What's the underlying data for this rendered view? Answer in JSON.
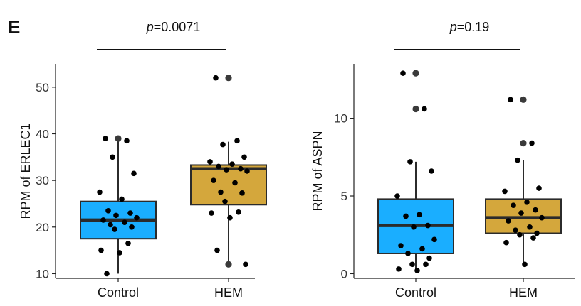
{
  "panel_label": "E",
  "chart_data": [
    {
      "type": "box",
      "title": "",
      "xlabel": "",
      "ylabel": "RPM of ERLEC1",
      "categories": [
        "Control",
        "HEM"
      ],
      "ylim": [
        9,
        55
      ],
      "yticks": [
        10,
        20,
        30,
        40,
        50
      ],
      "grid": false,
      "legend": "none",
      "annotation": {
        "p_label": "p",
        "p_value": "=0.0071"
      },
      "boxes": [
        {
          "category": "Control",
          "color": "#1aaeff",
          "whisker_low": 10,
          "q1": 17.5,
          "median": 21.5,
          "q3": 25.5,
          "whisker_high": 38.5,
          "outliers": [
            39
          ]
        },
        {
          "category": "HEM",
          "color": "#d4a73c",
          "whisker_low": 12,
          "q1": 24.8,
          "median": 32.5,
          "q3": 33.3,
          "whisker_high": 38.3,
          "outliers": [
            12,
            52
          ]
        }
      ],
      "points": [
        {
          "category": "Control",
          "values": [
            39,
            38.5,
            35,
            31.5,
            27.5,
            26,
            23.5,
            23,
            22.5,
            22,
            21.5,
            21,
            20.5,
            20,
            19.5,
            16.5,
            15,
            14.5,
            10
          ]
        },
        {
          "category": "HEM",
          "values": [
            52,
            38.5,
            37.7,
            35,
            34,
            33.5,
            33,
            32.5,
            32.3,
            32,
            30,
            29.5,
            27.5,
            27.3,
            25.5,
            23.2,
            23,
            22,
            15,
            12
          ]
        }
      ]
    },
    {
      "type": "box",
      "title": "",
      "xlabel": "",
      "ylabel": "RPM of ASPN",
      "categories": [
        "Control",
        "HEM"
      ],
      "ylim": [
        -0.3,
        13.5
      ],
      "yticks": [
        0,
        5,
        10
      ],
      "grid": false,
      "legend": "none",
      "annotation": {
        "p_label": "p",
        "p_value": "=0.19"
      },
      "boxes": [
        {
          "category": "Control",
          "color": "#1aaeff",
          "whisker_low": 0.2,
          "q1": 1.3,
          "median": 3.1,
          "q3": 4.8,
          "whisker_high": 7.2,
          "outliers": [
            10.6,
            12.9
          ]
        },
        {
          "category": "HEM",
          "color": "#d4a73c",
          "whisker_low": 0.6,
          "q1": 2.6,
          "median": 3.6,
          "q3": 4.8,
          "whisker_high": 7.3,
          "outliers": [
            8.4,
            11.2
          ]
        }
      ],
      "points": [
        {
          "category": "Control",
          "values": [
            12.9,
            10.6,
            7.2,
            6.6,
            5.0,
            3.8,
            3.7,
            3.1,
            3.0,
            2.2,
            1.8,
            1.6,
            1.3,
            1.0,
            0.6,
            0.6,
            0.3,
            0.2
          ]
        },
        {
          "category": "HEM",
          "values": [
            11.2,
            8.4,
            7.3,
            5.5,
            5.3,
            4.6,
            4.4,
            4.1,
            3.9,
            3.6,
            3.4,
            3.0,
            2.8,
            2.6,
            2.5,
            2.3,
            2.0,
            0.6
          ]
        }
      ]
    }
  ]
}
